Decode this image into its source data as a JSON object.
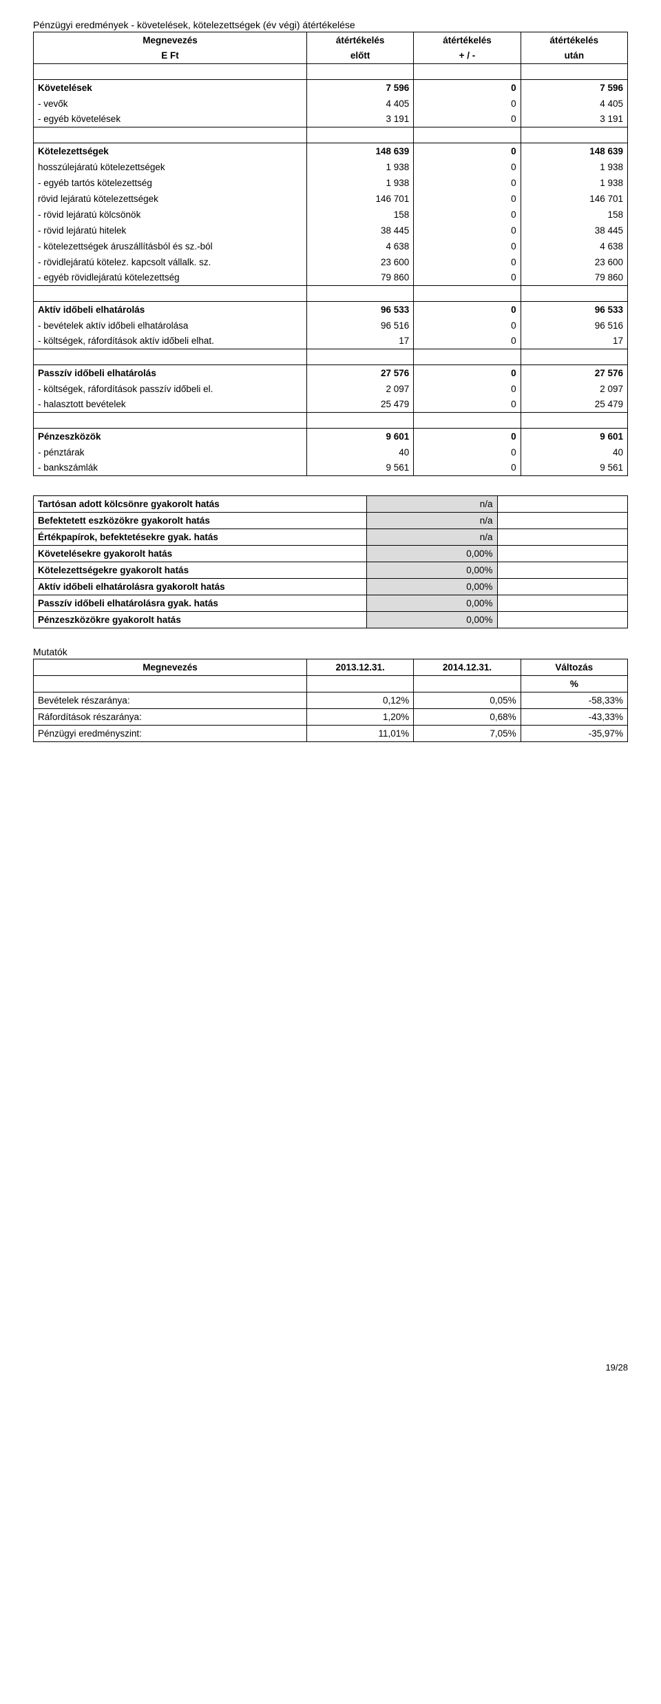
{
  "title": "Pénzügyi eredmények - követelések, kötelezettségek (év végi) átértékelése",
  "header": {
    "megnevezes": "Megnevezés",
    "eft": "E Ft",
    "c1a": "átértékelés",
    "c1b": "előtt",
    "c2a": "átértékelés",
    "c2b": "+ / -",
    "c3a": "átértékelés",
    "c3b": "után"
  },
  "sections": [
    {
      "rows": [
        {
          "label": "Követelések",
          "a": "7 596",
          "b": "0",
          "c": "7 596",
          "bold": true
        },
        {
          "label": " - vevők",
          "a": "4 405",
          "b": "0",
          "c": "4 405"
        },
        {
          "label": " - egyéb követelések",
          "a": "3 191",
          "b": "0",
          "c": "3 191"
        }
      ]
    },
    {
      "rows": [
        {
          "label": "Kötelezettségek",
          "a": "148 639",
          "b": "0",
          "c": "148 639",
          "bold": true
        },
        {
          "label": " hosszúlejáratú kötelezettségek",
          "a": "1 938",
          "b": "0",
          "c": "1 938"
        },
        {
          "label": " - egyéb tartós kötelezettség",
          "a": "1 938",
          "b": "0",
          "c": "1 938"
        },
        {
          "label": " rövid lejáratú kötelezettségek",
          "a": "146 701",
          "b": "0",
          "c": "146 701"
        },
        {
          "label": " - rövid lejáratú kölcsönök",
          "a": "158",
          "b": "0",
          "c": "158"
        },
        {
          "label": " - rövid lejáratú hitelek",
          "a": "38 445",
          "b": "0",
          "c": "38 445"
        },
        {
          "label": " - kötelezettségek áruszállításból és sz.-ból",
          "a": "4 638",
          "b": "0",
          "c": "4 638"
        },
        {
          "label": " - rövidlejáratú kötelez. kapcsolt vállalk. sz.",
          "a": "23 600",
          "b": "0",
          "c": "23 600"
        },
        {
          "label": " - egyéb rövidlejáratú kötelezettség",
          "a": "79 860",
          "b": "0",
          "c": "79 860"
        }
      ]
    },
    {
      "rows": [
        {
          "label": "Aktív időbeli elhatárolás",
          "a": "96 533",
          "b": "0",
          "c": "96 533",
          "bold": true
        },
        {
          "label": " - bevételek aktív időbeli elhatárolása",
          "a": "96 516",
          "b": "0",
          "c": "96 516"
        },
        {
          "label": " - költségek, ráfordítások aktív időbeli elhat.",
          "a": "17",
          "b": "0",
          "c": "17"
        }
      ]
    },
    {
      "rows": [
        {
          "label": "Passzív időbeli elhatárolás",
          "a": "27 576",
          "b": "0",
          "c": "27 576",
          "bold": true
        },
        {
          "label": " - költségek, ráfordítások passzív időbeli el.",
          "a": "2 097",
          "b": "0",
          "c": "2 097"
        },
        {
          "label": " - halasztott bevételek",
          "a": "25 479",
          "b": "0",
          "c": "25 479"
        }
      ]
    },
    {
      "rows": [
        {
          "label": "Pénzeszközök",
          "a": "9 601",
          "b": "0",
          "c": "9 601",
          "bold": true
        },
        {
          "label": " - pénztárak",
          "a": "40",
          "b": "0",
          "c": "40"
        },
        {
          "label": " - bankszámlák",
          "a": "9 561",
          "b": "0",
          "c": "9 561"
        }
      ]
    }
  ],
  "impact": [
    {
      "label": "Tartósan adott kölcsönre gyakorolt hatás",
      "val": "n/a"
    },
    {
      "label": "Befektetett eszközökre gyakorolt hatás",
      "val": "n/a"
    },
    {
      "label": "Értékpapírok, befektetésekre gyak. hatás",
      "val": "n/a"
    },
    {
      "label": "Követelésekre gyakorolt hatás",
      "val": "0,00%"
    },
    {
      "label": "Kötelezettségekre gyakorolt hatás",
      "val": "0,00%"
    },
    {
      "label": "Aktív időbeli elhatárolásra gyakorolt hatás",
      "val": "0,00%"
    },
    {
      "label": "Passzív időbeli elhatárolásra gyak. hatás",
      "val": "0,00%"
    },
    {
      "label": "Pénzeszközökre gyakorolt hatás",
      "val": "0,00%"
    }
  ],
  "mut": {
    "title": "Mutatók",
    "h": {
      "m": "Megnevezés",
      "d1": "2013.12.31.",
      "d2": "2014.12.31.",
      "v": "Változás",
      "pct": "%"
    },
    "rows": [
      {
        "l": "Bevételek részaránya:",
        "a": "0,12%",
        "b": "0,05%",
        "c": "-58,33%"
      },
      {
        "l": "Ráfordítások részaránya:",
        "a": "1,20%",
        "b": "0,68%",
        "c": "-43,33%"
      },
      {
        "l": "Pénzügyi eredményszint:",
        "a": "11,01%",
        "b": "7,05%",
        "c": "-35,97%"
      }
    ]
  },
  "pager": "19/28"
}
